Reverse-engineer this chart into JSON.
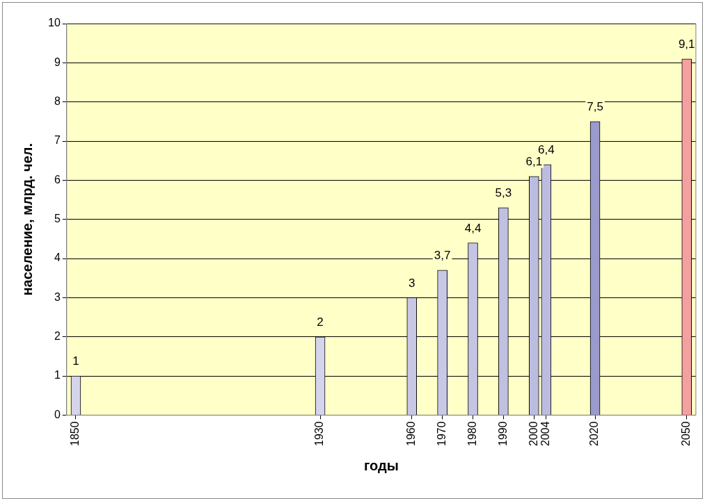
{
  "chart_data": {
    "type": "bar",
    "xlabel": "годы",
    "ylabel": "население, млрд. чел.",
    "x": [
      1850,
      1930,
      1960,
      1970,
      1980,
      1990,
      2000,
      2004,
      2020,
      2050
    ],
    "values": [
      1,
      2,
      3,
      3.7,
      4.4,
      5.3,
      6.1,
      6.4,
      7.5,
      9.1
    ],
    "value_labels": [
      "1",
      "2",
      "3",
      "3,7",
      "4,4",
      "5,3",
      "6,1",
      "6,4",
      "7,5",
      "9,1"
    ],
    "colors": [
      "#d4d4ec",
      "#d4d4ec",
      "#c8c8e6",
      "#c8c8e6",
      "#c4c4e4",
      "#c0c0e2",
      "#bcbce0",
      "#bcbce0",
      "#9a9acc",
      "#f4a0a0"
    ],
    "xlim": [
      1847,
      2053
    ],
    "xticks": [
      1850,
      1930,
      1960,
      1970,
      1980,
      1990,
      2000,
      2004,
      2020,
      2050
    ],
    "ylim": [
      0,
      10
    ],
    "yticks": [
      0,
      1,
      2,
      3,
      4,
      5,
      6,
      7,
      8,
      9,
      10
    ],
    "grid": "y",
    "legend": false
  }
}
